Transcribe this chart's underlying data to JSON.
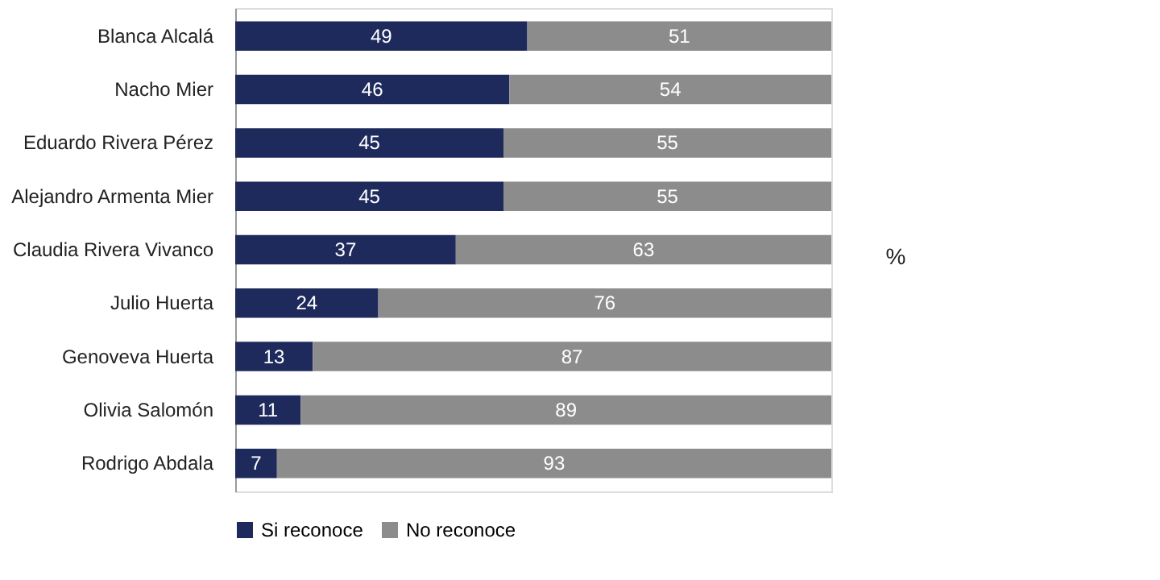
{
  "chart_data": {
    "type": "bar",
    "orientation": "horizontal",
    "stacked": true,
    "categories": [
      "Blanca Alcalá",
      "Nacho Mier",
      "Eduardo Rivera Pérez",
      "Alejandro Armenta Mier",
      "Claudia Rivera Vivanco",
      "Julio Huerta",
      "Genoveva Huerta",
      "Olivia Salomón",
      "Rodrigo Abdala"
    ],
    "series": [
      {
        "name": "Si reconoce",
        "color": "#1f2a5c",
        "values": [
          49,
          46,
          45,
          45,
          37,
          24,
          13,
          11,
          7
        ]
      },
      {
        "name": "No reconoce",
        "color": "#8c8c8c",
        "values": [
          51,
          54,
          55,
          55,
          63,
          76,
          87,
          89,
          93
        ]
      }
    ],
    "xlim": [
      0,
      100
    ],
    "tick_labels": "y",
    "data_labels": true,
    "legend": "bottom",
    "grid": false,
    "annotations": [
      "%"
    ]
  }
}
